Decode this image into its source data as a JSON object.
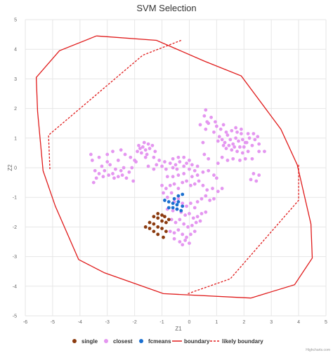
{
  "chart_data": {
    "type": "scatter",
    "title": "SVM Selection",
    "xlabel": "Z1",
    "ylabel": "Z2",
    "xlim": [
      -6,
      5
    ],
    "ylim": [
      -5,
      5
    ],
    "x_ticks": [
      -6,
      -5,
      -4,
      -3,
      -2,
      -1,
      0,
      1,
      2,
      3,
      4,
      5
    ],
    "y_ticks": [
      -5,
      -4,
      -3,
      -2,
      -1,
      0,
      1,
      2,
      3,
      4,
      5
    ],
    "grid": true,
    "legend_position": "bottom",
    "credit": "Highcharts.com",
    "series": [
      {
        "name": "single",
        "type": "scatter",
        "color": "#8B3A0E",
        "points": [
          [
            -1.6,
            -2.0
          ],
          [
            -1.45,
            -2.05
          ],
          [
            -1.3,
            -2.15
          ],
          [
            -1.15,
            -2.25
          ],
          [
            -0.95,
            -2.35
          ],
          [
            -1.45,
            -1.85
          ],
          [
            -1.3,
            -1.9
          ],
          [
            -1.15,
            -2.0
          ],
          [
            -1.0,
            -2.05
          ],
          [
            -0.85,
            -2.15
          ],
          [
            -1.3,
            -1.65
          ],
          [
            -1.15,
            -1.7
          ],
          [
            -1.0,
            -1.8
          ],
          [
            -0.85,
            -1.85
          ],
          [
            -1.15,
            -1.55
          ],
          [
            -1.0,
            -1.6
          ],
          [
            -0.9,
            -1.65
          ],
          [
            -0.75,
            -1.75
          ]
        ]
      },
      {
        "name": "closest",
        "type": "scatter",
        "color": "#E496F0",
        "points": [
          [
            -3.5,
            -0.5
          ],
          [
            -3.4,
            -0.35
          ],
          [
            -3.45,
            -0.1
          ],
          [
            -3.3,
            -0.2
          ],
          [
            -3.2,
            0.05
          ],
          [
            -3.1,
            -0.1
          ],
          [
            -3.0,
            0.2
          ],
          [
            -2.9,
            0.1
          ],
          [
            -2.8,
            -0.2
          ],
          [
            -2.7,
            -0.05
          ],
          [
            -2.6,
            -0.3
          ],
          [
            -2.5,
            -0.1
          ],
          [
            -2.4,
            0.0
          ],
          [
            -2.3,
            -0.35
          ],
          [
            -2.2,
            -0.15
          ],
          [
            -2.1,
            0.0
          ],
          [
            -2.0,
            0.25
          ],
          [
            -2.35,
            0.45
          ],
          [
            -2.5,
            0.6
          ],
          [
            -3.3,
            0.35
          ],
          [
            -3.55,
            0.25
          ],
          [
            -3.6,
            0.45
          ],
          [
            -3.0,
            0.45
          ],
          [
            -2.8,
            0.55
          ],
          [
            -2.6,
            0.25
          ],
          [
            -2.45,
            -0.25
          ],
          [
            -3.15,
            -0.3
          ],
          [
            -2.95,
            -0.25
          ],
          [
            -2.75,
            -0.35
          ],
          [
            -2.05,
            -0.45
          ],
          [
            -1.9,
            0.55
          ],
          [
            -1.8,
            0.65
          ],
          [
            -1.7,
            0.7
          ],
          [
            -1.6,
            0.6
          ],
          [
            -1.5,
            0.8
          ],
          [
            -1.45,
            0.65
          ],
          [
            -1.55,
            0.45
          ],
          [
            -1.75,
            0.5
          ],
          [
            -1.35,
            0.75
          ],
          [
            -1.25,
            0.55
          ],
          [
            -1.65,
            0.85
          ],
          [
            -1.85,
            0.75
          ],
          [
            -1.95,
            0.2
          ],
          [
            -2.15,
            0.35
          ],
          [
            -1.6,
            0.35
          ],
          [
            -1.3,
            0.35
          ],
          [
            -1.2,
            0.1
          ],
          [
            -1.1,
            0.25
          ],
          [
            -1.0,
            0.05
          ],
          [
            -0.9,
            0.2
          ],
          [
            -0.85,
            -0.05
          ],
          [
            -0.7,
            0.15
          ],
          [
            -0.6,
            0.0
          ],
          [
            -0.5,
            0.1
          ],
          [
            -0.45,
            -0.05
          ],
          [
            -0.35,
            0.2
          ],
          [
            -0.2,
            0.05
          ],
          [
            -0.1,
            0.15
          ],
          [
            0.0,
            -0.05
          ],
          [
            0.1,
            0.1
          ],
          [
            0.2,
            -0.1
          ],
          [
            0.3,
            0.05
          ],
          [
            -0.6,
            0.3
          ],
          [
            -0.4,
            0.35
          ],
          [
            -0.2,
            0.35
          ],
          [
            0.0,
            0.25
          ],
          [
            -1.5,
            0.05
          ],
          [
            -1.3,
            -0.05
          ],
          [
            0.6,
            1.3
          ],
          [
            0.7,
            1.5
          ],
          [
            0.8,
            1.7
          ],
          [
            0.9,
            1.2
          ],
          [
            1.0,
            1.4
          ],
          [
            1.1,
            1.05
          ],
          [
            1.2,
            0.95
          ],
          [
            1.3,
            0.85
          ],
          [
            1.4,
            1.1
          ],
          [
            1.5,
            0.95
          ],
          [
            1.6,
            0.8
          ],
          [
            1.7,
            1.0
          ],
          [
            1.8,
            0.9
          ],
          [
            1.9,
            1.15
          ],
          [
            2.0,
            0.7
          ],
          [
            2.1,
            0.85
          ],
          [
            2.2,
            1.0
          ],
          [
            2.3,
            0.75
          ],
          [
            2.4,
            0.95
          ],
          [
            2.5,
            1.05
          ],
          [
            1.35,
            0.65
          ],
          [
            1.55,
            0.6
          ],
          [
            1.75,
            0.55
          ],
          [
            1.95,
            0.5
          ],
          [
            2.15,
            0.55
          ],
          [
            1.45,
            0.75
          ],
          [
            1.65,
            0.7
          ],
          [
            1.85,
            0.7
          ],
          [
            2.05,
            0.85
          ],
          [
            1.25,
            0.75
          ],
          [
            1.55,
            1.25
          ],
          [
            1.75,
            1.2
          ],
          [
            1.95,
            0.95
          ],
          [
            2.15,
            1.15
          ],
          [
            1.05,
            0.9
          ],
          [
            0.55,
            1.75
          ],
          [
            0.6,
            1.95
          ],
          [
            0.65,
            1.55
          ],
          [
            0.4,
            1.45
          ],
          [
            0.95,
            1.55
          ],
          [
            1.15,
            1.3
          ],
          [
            1.35,
            1.2
          ],
          [
            2.35,
            1.15
          ],
          [
            2.55,
            0.55
          ],
          [
            2.75,
            0.55
          ],
          [
            1.85,
            0.25
          ],
          [
            2.05,
            0.3
          ],
          [
            2.3,
            0.3
          ],
          [
            1.6,
            0.3
          ],
          [
            1.4,
            0.25
          ],
          [
            2.55,
            0.8
          ],
          [
            1.7,
            1.35
          ],
          [
            1.9,
            1.3
          ],
          [
            1.25,
            1.45
          ],
          [
            0.5,
            0.85
          ],
          [
            0.7,
            0.3
          ],
          [
            0.55,
            0.45
          ],
          [
            1.05,
            0.15
          ],
          [
            1.2,
            0.35
          ],
          [
            2.35,
            -0.2
          ],
          [
            2.55,
            -0.25
          ],
          [
            2.45,
            -0.45
          ],
          [
            2.25,
            -0.4
          ],
          [
            1.0,
            -0.35
          ],
          [
            -1.0,
            -0.6
          ],
          [
            -0.85,
            -0.7
          ],
          [
            -0.7,
            -0.6
          ],
          [
            -0.55,
            -0.55
          ],
          [
            -0.4,
            -0.7
          ],
          [
            -0.25,
            -0.5
          ],
          [
            -0.1,
            -0.45
          ],
          [
            0.05,
            -0.6
          ],
          [
            0.2,
            -0.55
          ],
          [
            0.35,
            -0.45
          ],
          [
            0.5,
            -0.6
          ],
          [
            0.65,
            -0.75
          ],
          [
            0.85,
            -0.7
          ],
          [
            1.05,
            -0.8
          ],
          [
            1.2,
            -0.7
          ],
          [
            -0.6,
            -0.3
          ],
          [
            -0.4,
            -0.25
          ],
          [
            -0.2,
            -0.2
          ],
          [
            0.1,
            -0.3
          ],
          [
            0.3,
            -0.25
          ],
          [
            0.5,
            -0.15
          ],
          [
            0.7,
            -0.1
          ],
          [
            0.9,
            -0.25
          ],
          [
            -0.8,
            -0.3
          ],
          [
            -0.95,
            -0.85
          ],
          [
            -0.8,
            -1.0
          ],
          [
            -0.65,
            -0.85
          ],
          [
            -0.55,
            -1.15
          ],
          [
            -0.4,
            -1.05
          ],
          [
            -0.25,
            -1.2
          ],
          [
            -0.1,
            -1.3
          ],
          [
            0.05,
            -1.2
          ],
          [
            0.2,
            -1.35
          ],
          [
            0.3,
            -1.15
          ],
          [
            0.45,
            -1.05
          ],
          [
            0.6,
            -0.95
          ],
          [
            0.75,
            -1.1
          ],
          [
            0.9,
            -1.05
          ],
          [
            -0.8,
            -1.4
          ],
          [
            -0.6,
            -1.45
          ],
          [
            -0.45,
            -1.4
          ],
          [
            -0.3,
            -1.5
          ],
          [
            -0.15,
            -1.6
          ],
          [
            0.0,
            -1.55
          ],
          [
            0.15,
            -1.7
          ],
          [
            0.3,
            -1.65
          ],
          [
            0.45,
            -1.55
          ],
          [
            0.6,
            -1.5
          ],
          [
            -0.65,
            -1.75
          ],
          [
            -0.5,
            -1.85
          ],
          [
            -0.35,
            -1.75
          ],
          [
            -0.2,
            -1.9
          ],
          [
            -0.05,
            -2.0
          ],
          [
            0.1,
            -1.95
          ],
          [
            0.25,
            -1.85
          ],
          [
            0.4,
            -1.8
          ],
          [
            -0.7,
            -2.15
          ],
          [
            -0.55,
            -2.2
          ],
          [
            -0.4,
            -2.1
          ],
          [
            -0.25,
            -2.25
          ],
          [
            -0.1,
            -2.35
          ],
          [
            0.05,
            -2.25
          ],
          [
            0.2,
            -2.15
          ],
          [
            -0.55,
            -2.4
          ],
          [
            -0.35,
            -2.5
          ],
          [
            -0.25,
            -2.6
          ],
          [
            -0.15,
            -2.45
          ],
          [
            0.0,
            -2.55
          ]
        ]
      },
      {
        "name": "fcmeans",
        "type": "scatter",
        "color": "#1A6FD0",
        "points": [
          [
            -0.9,
            -1.1
          ],
          [
            -0.75,
            -1.15
          ],
          [
            -0.6,
            -1.2
          ],
          [
            -0.45,
            -1.25
          ],
          [
            -0.75,
            -1.35
          ],
          [
            -0.6,
            -1.35
          ],
          [
            -0.45,
            -1.4
          ],
          [
            -0.3,
            -1.45
          ],
          [
            -0.55,
            -1.05
          ],
          [
            -0.4,
            -0.95
          ],
          [
            -0.25,
            -0.9
          ],
          [
            -0.4,
            -1.15
          ],
          [
            -0.25,
            -1.3
          ]
        ]
      },
      {
        "name": "boundary",
        "type": "line",
        "color": "#E01B1B",
        "dash": "solid",
        "points": [
          [
            -3.4,
            4.45
          ],
          [
            -1.2,
            4.3
          ],
          [
            0.55,
            3.6
          ],
          [
            1.9,
            3.1
          ],
          [
            3.35,
            1.3
          ],
          [
            3.95,
            0.1
          ],
          [
            4.45,
            -1.9
          ],
          [
            4.5,
            -3.05
          ],
          [
            3.85,
            -3.95
          ],
          [
            2.25,
            -4.4
          ],
          [
            -0.95,
            -4.25
          ],
          [
            -3.1,
            -3.55
          ],
          [
            -4.05,
            -3.1
          ],
          [
            -4.9,
            -1.3
          ],
          [
            -5.35,
            -0.1
          ],
          [
            -5.55,
            1.9
          ],
          [
            -5.6,
            3.05
          ],
          [
            -4.75,
            3.95
          ],
          [
            -3.4,
            4.45
          ]
        ]
      },
      {
        "name": "likely boundary",
        "type": "line",
        "color": "#E01B1B",
        "dash": "dash",
        "points": [
          [
            -0.3,
            4.3
          ],
          [
            -1.7,
            3.8
          ],
          [
            -5.15,
            1.1
          ],
          [
            -5.1,
            -0.05
          ]
        ],
        "points2": [
          [
            4.0,
            0.1
          ],
          [
            4.0,
            -1.1
          ],
          [
            1.5,
            -3.75
          ],
          [
            -0.05,
            -4.25
          ]
        ]
      }
    ]
  }
}
